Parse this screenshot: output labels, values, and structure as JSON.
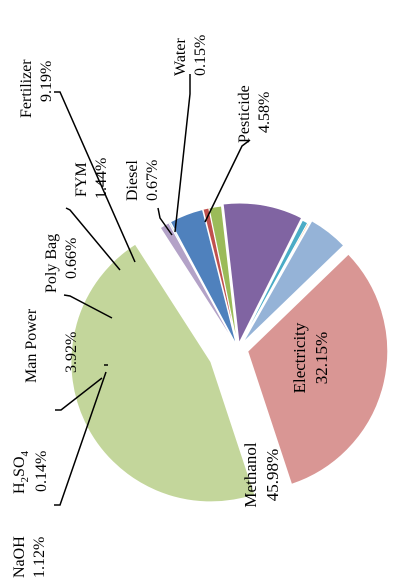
{
  "chart_data": {
    "type": "pie",
    "exploded": true,
    "slices": [
      {
        "name": "Electricity",
        "value": 32.15,
        "label": "32.15%",
        "color": "#D99694"
      },
      {
        "name": "Methanol",
        "value": 45.98,
        "label": "45.98%",
        "color": "#C3D69B"
      },
      {
        "name": "NaOH",
        "value": 1.12,
        "label": "1.12%",
        "color": "#B3A2C7"
      },
      {
        "name": "H2SO4",
        "value": 0.14,
        "label": "0.14%",
        "color": "#4BACC6"
      },
      {
        "name": "Man Power",
        "value": 3.92,
        "label": "3.92%",
        "color": "#4F81BD"
      },
      {
        "name": "Poly Bag",
        "value": 0.66,
        "label": "0.66%",
        "color": "#C0504D"
      },
      {
        "name": "FYM",
        "value": 1.44,
        "label": "1.44%",
        "color": "#9BBB59"
      },
      {
        "name": "Fertilizer",
        "value": 9.19,
        "label": "9.19%",
        "color": "#8064A2"
      },
      {
        "name": "Diesel",
        "value": 0.67,
        "label": "0.67%",
        "color": "#4BACC6"
      },
      {
        "name": "Water",
        "value": 0.15,
        "label": "0.15%",
        "color": "#F79646"
      },
      {
        "name": "Pesticide",
        "value": 4.58,
        "label": "4.58%",
        "color": "#95B3D7"
      }
    ]
  }
}
